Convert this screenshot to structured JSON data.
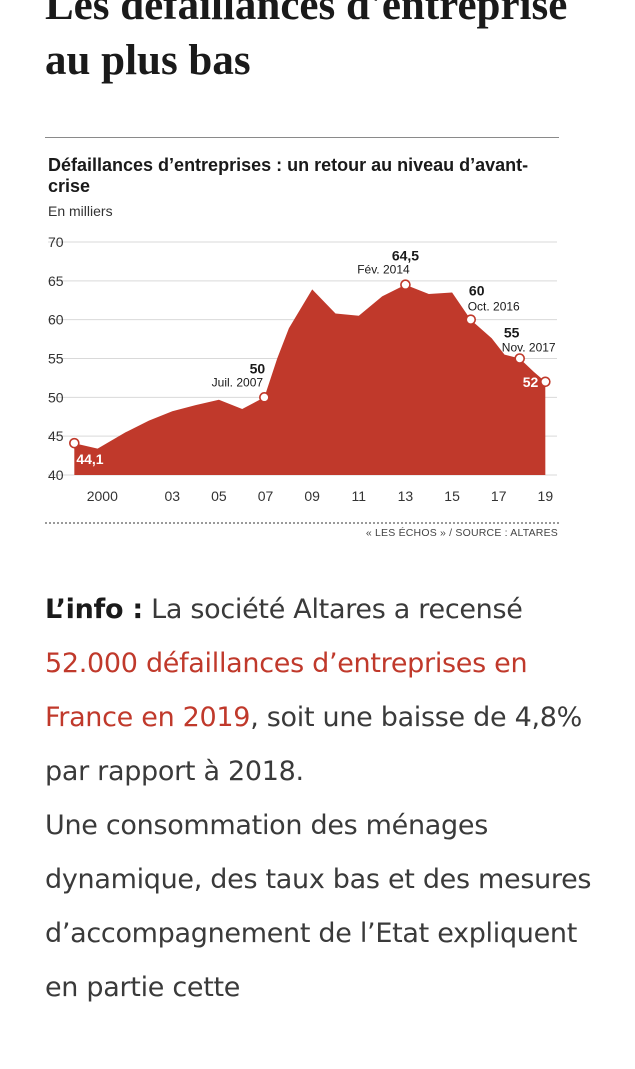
{
  "headline": "Les défaillances d'entreprise au plus bas",
  "chart_data": {
    "type": "area",
    "title": "Défaillances d’entreprises : un retour au niveau d’avant-crise",
    "ylabel": "En milliers",
    "ylim": [
      40,
      70
    ],
    "yticks": [
      40,
      45,
      50,
      55,
      60,
      65,
      70
    ],
    "xticks": [
      {
        "label": "2000",
        "x": 2000
      },
      {
        "label": "03",
        "x": 2003
      },
      {
        "label": "05",
        "x": 2005
      },
      {
        "label": "07",
        "x": 2007
      },
      {
        "label": "09",
        "x": 2009
      },
      {
        "label": "11",
        "x": 2011
      },
      {
        "label": "13",
        "x": 2013
      },
      {
        "label": "15",
        "x": 2015
      },
      {
        "label": "17",
        "x": 2017
      },
      {
        "label": "19",
        "x": 2019
      }
    ],
    "xlim": [
      1998.7,
      2019.5
    ],
    "x": [
      1998.8,
      1999.8,
      2001,
      2002,
      2003,
      2004,
      2005,
      2006,
      2006.95,
      2007.5,
      2008,
      2009,
      2010,
      2011,
      2012,
      2013,
      2014,
      2015,
      2015.8,
      2016.7,
      2017.25,
      2017.9,
      2018.5,
      2019
    ],
    "y": [
      44.1,
      43.4,
      45.5,
      47,
      48.2,
      49,
      49.7,
      48.5,
      50,
      55,
      58.9,
      63.9,
      60.8,
      60.5,
      63,
      64.5,
      63.3,
      63.5,
      60,
      57.6,
      55.5,
      55,
      53.3,
      52
    ],
    "color": "#c0392b",
    "markers": [
      {
        "x": 1998.8,
        "y": 44.1,
        "value": "44,1",
        "date": ""
      },
      {
        "x": 2006.95,
        "y": 50,
        "value": "50",
        "date": "Juil. 2007"
      },
      {
        "x": 2013,
        "y": 64.5,
        "value": "64,5",
        "date": "Fév. 2014"
      },
      {
        "x": 2015.8,
        "y": 60,
        "value": "60",
        "date": "Oct. 2016"
      },
      {
        "x": 2017.9,
        "y": 55,
        "value": "55",
        "date": "Nov. 2017"
      },
      {
        "x": 2019,
        "y": 52,
        "value": "52",
        "date": ""
      }
    ],
    "grid": true
  },
  "source": "« LES ÉCHOS » / SOURCE : ALTARES",
  "article": {
    "lead": "L’info :",
    "t1": " La société Altares a recensé ",
    "highlight": "52.000 défaillances d’entreprises en France en 2019",
    "t2": ", soit une baisse de 4,8% par rapport à 2018.",
    "t3": "Une consommation des ménages dynamique, des taux bas et des mesures d’accompagnement de l’Etat expliquent en partie cette"
  }
}
